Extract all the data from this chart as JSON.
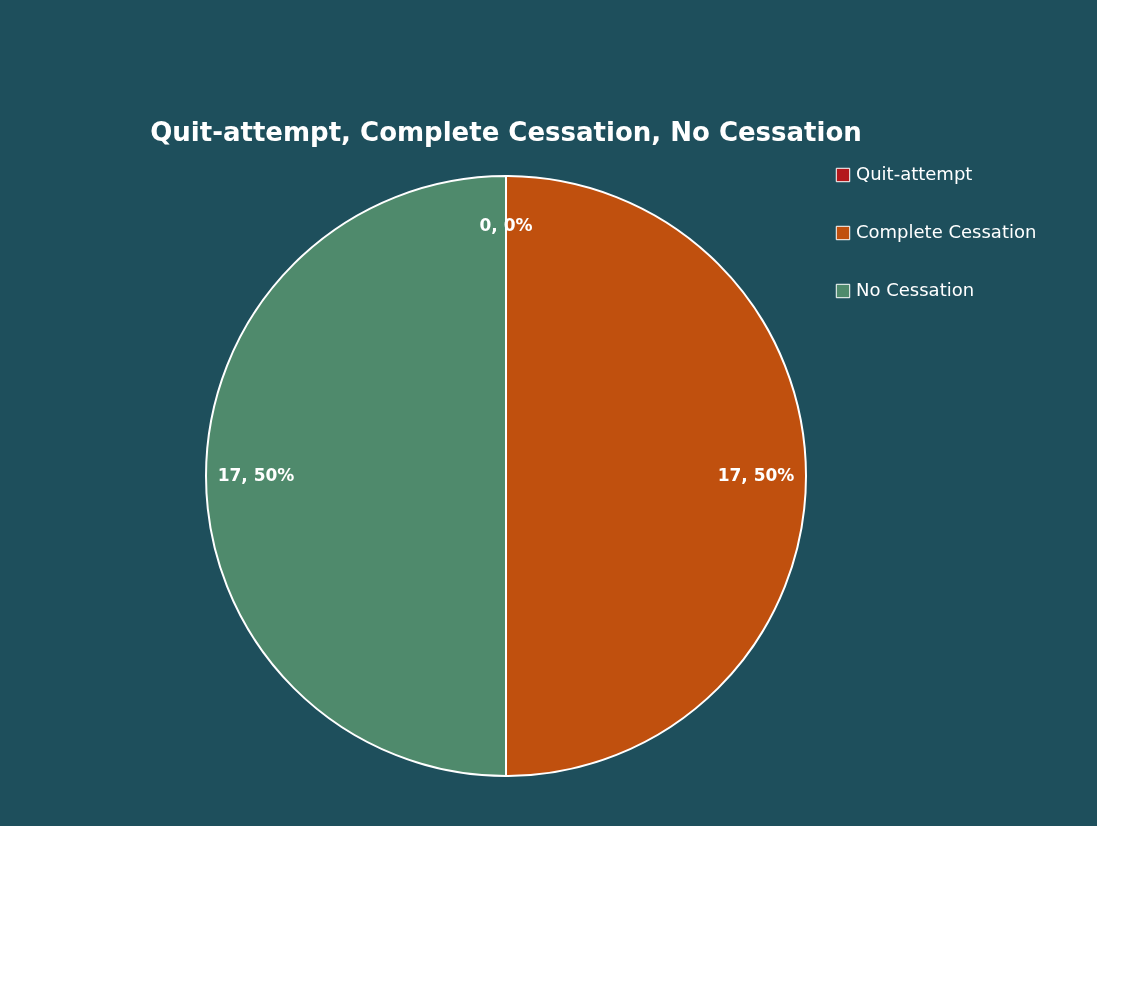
{
  "chart_data": {
    "type": "pie",
    "title": "Quit-attempt, Complete Cessation, No Cessation",
    "categories": [
      "Quit-attempt",
      "Complete Cessation",
      "No Cessation"
    ],
    "values": [
      0,
      17,
      17
    ],
    "colors": [
      "#b3181c",
      "#c0500e",
      "#4f8a6c"
    ],
    "value_labels": [
      "0, 0%",
      "17, 50%",
      "17, 50%"
    ],
    "legend": "right"
  }
}
